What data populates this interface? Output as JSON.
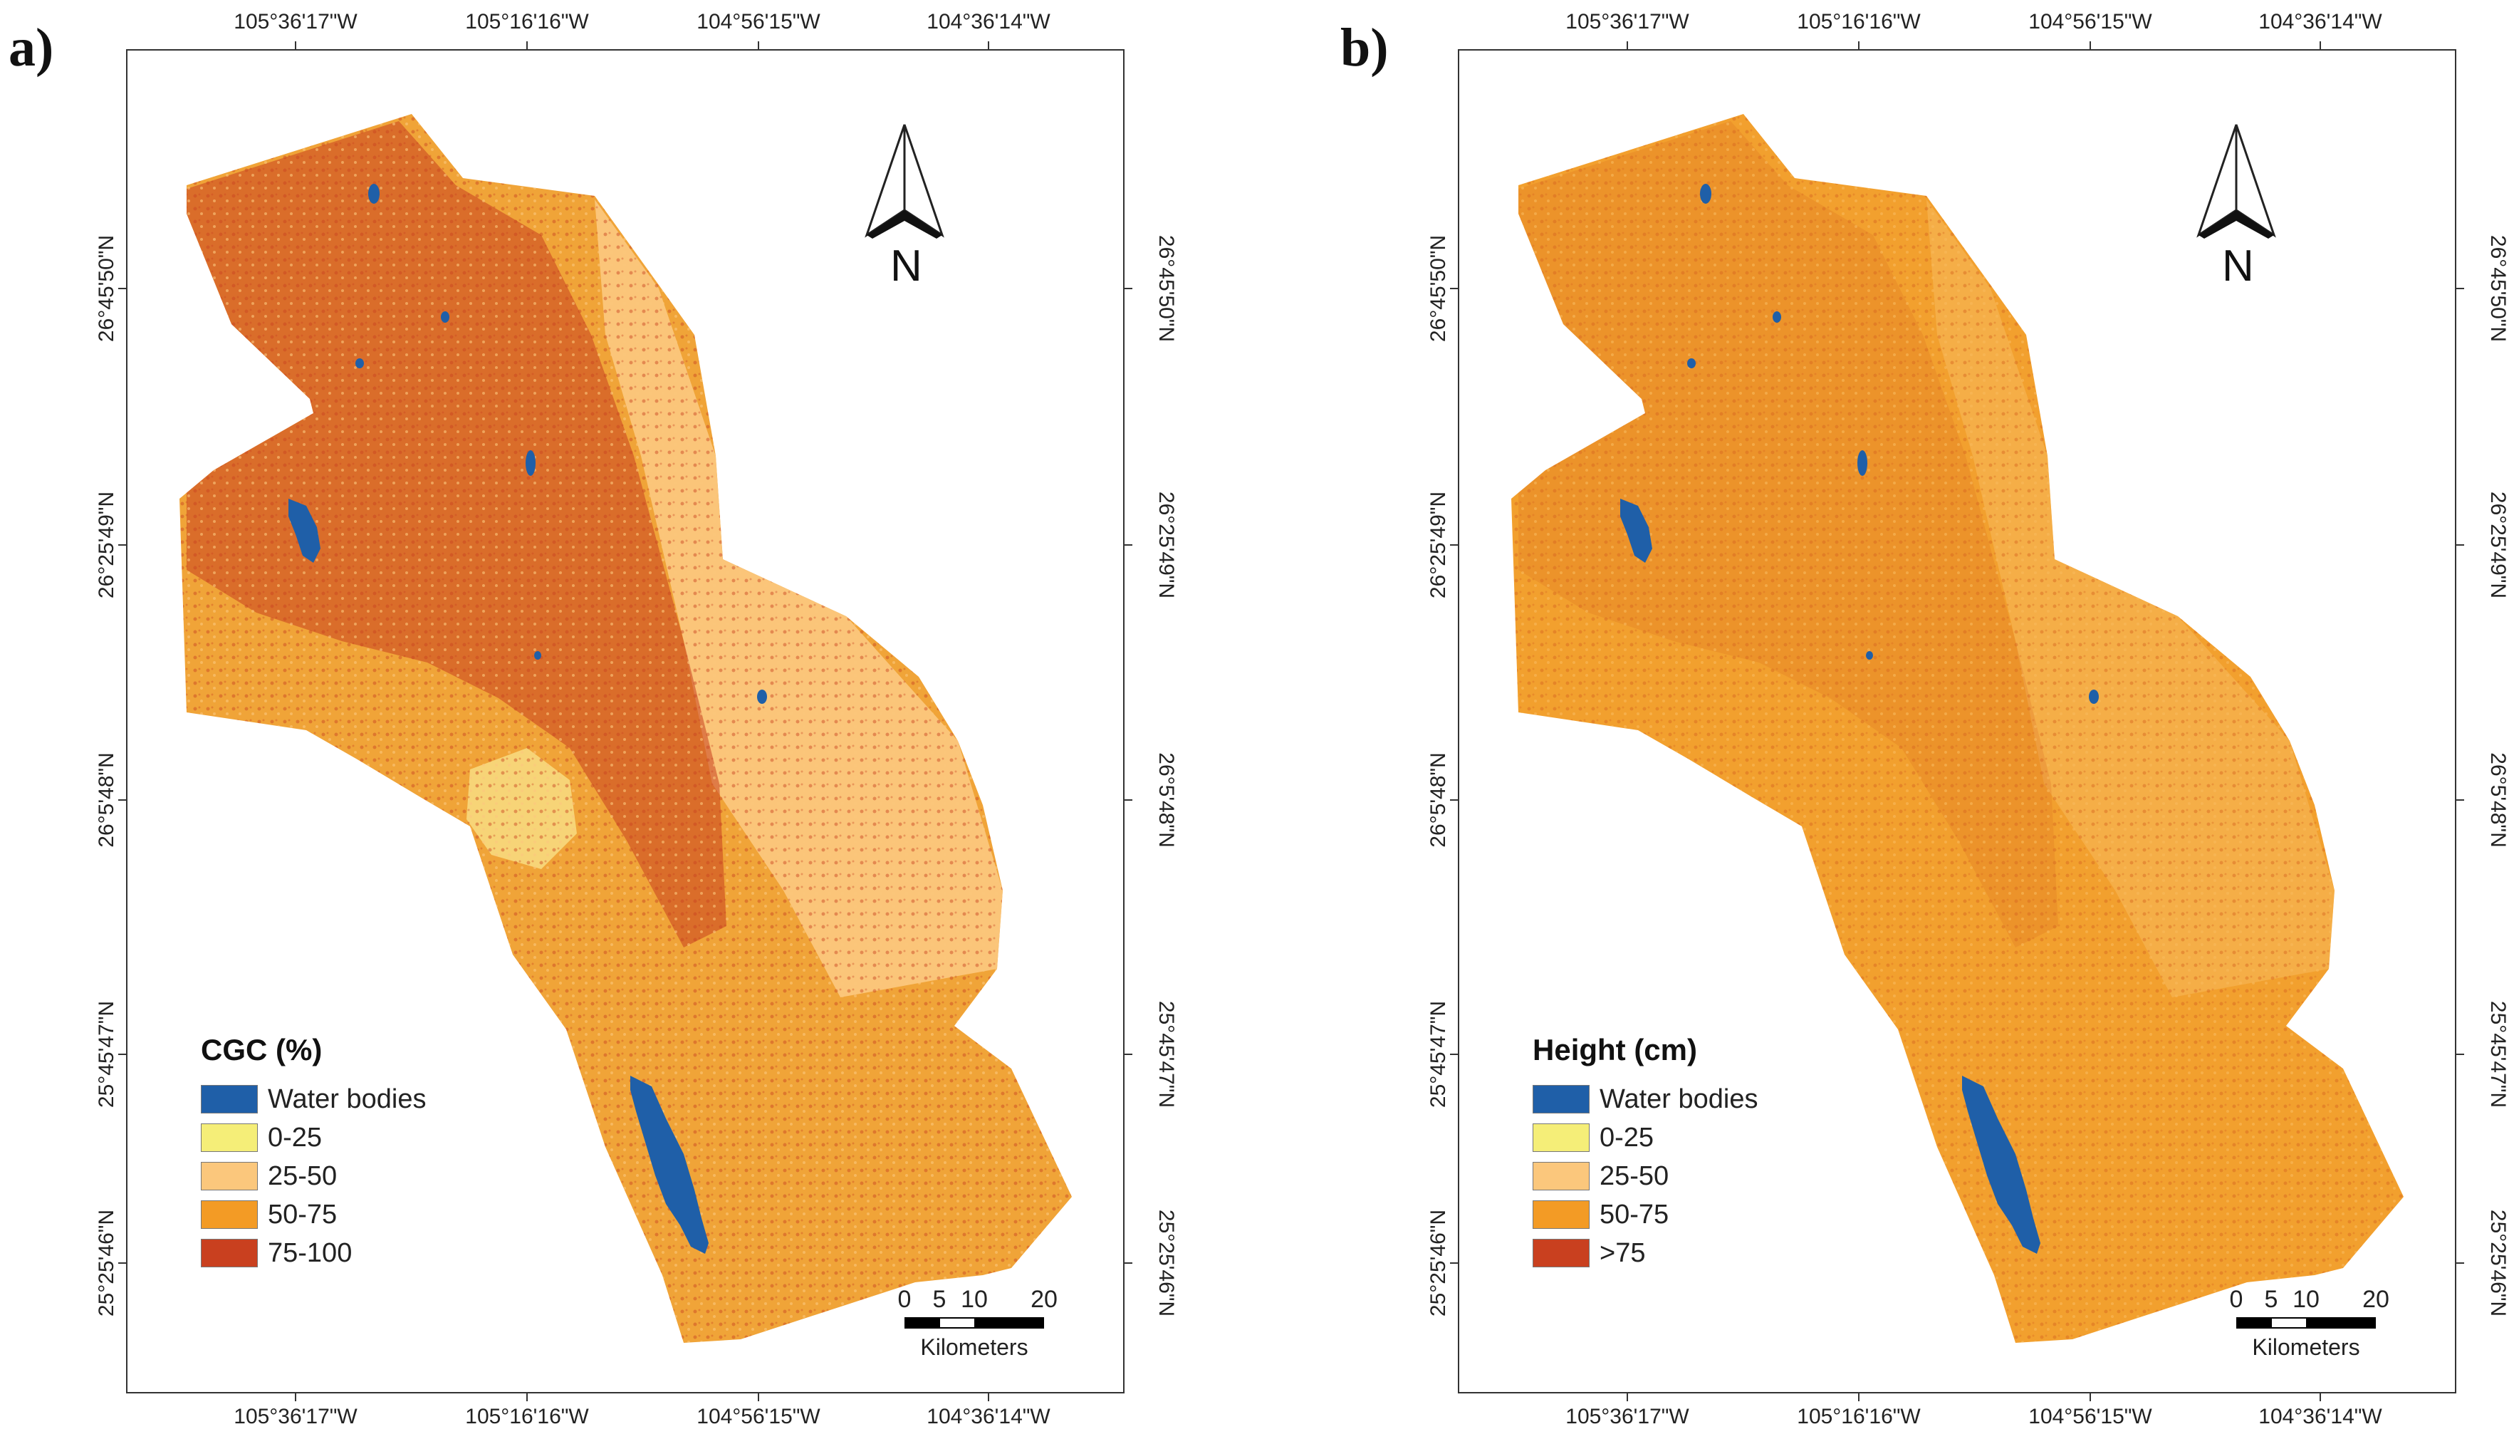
{
  "panels": [
    {
      "letter": "a)",
      "legend": {
        "title": "CGC (%)",
        "items": [
          {
            "label": "Water bodies",
            "color": "#1f5fa8"
          },
          {
            "label": "0-25",
            "color": "#f5ee78"
          },
          {
            "label": "25-50",
            "color": "#fbc77c"
          },
          {
            "label": "50-75",
            "color": "#f39b25"
          },
          {
            "label": "75-100",
            "color": "#c9401f"
          }
        ]
      },
      "surface": {
        "base": "#f0a438",
        "light": "#fbc77c",
        "dark": "#c9401f"
      }
    },
    {
      "letter": "b)",
      "legend": {
        "title": "Height (cm)",
        "items": [
          {
            "label": "Water bodies",
            "color": "#1f5fa8"
          },
          {
            "label": "0-25",
            "color": "#f5ee78"
          },
          {
            "label": "25-50",
            "color": "#fbc77c"
          },
          {
            "label": "50-75",
            "color": "#f39b25"
          },
          {
            "label": ">75",
            "color": "#c9401f"
          }
        ]
      },
      "surface": {
        "base": "#f2a02e",
        "light": "#f8b95c",
        "dark": "#d5651f"
      }
    }
  ],
  "axes": {
    "longitude_ticks": [
      "105°36'17\"W",
      "105°16'16\"W",
      "104°56'15\"W",
      "104°36'14\"W"
    ],
    "latitude_ticks": [
      "26°45'50\"N",
      "26°25'49\"N",
      "26°5'48\"N",
      "25°45'47\"N",
      "25°25'46\"N"
    ]
  },
  "north_label": "N",
  "scale": {
    "numbers": [
      "0",
      "5",
      "10",
      "20"
    ],
    "unit": "Kilometers"
  }
}
